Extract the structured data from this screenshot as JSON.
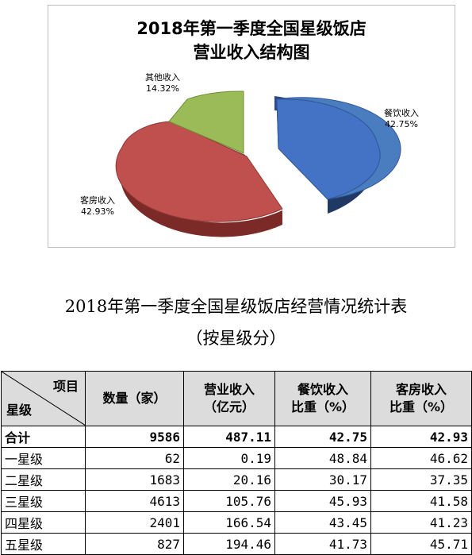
{
  "chart_data": {
    "type": "pie",
    "title_line1": "2018年第一季度全国星级饭店",
    "title_line2": "营业收入结构图",
    "slices": [
      {
        "name": "餐饮收入",
        "label": "42.75%",
        "value": 42.75,
        "color": "#4472c4"
      },
      {
        "name": "客房收入",
        "label": "42.93%",
        "value": 42.93,
        "color": "#c0504d"
      },
      {
        "name": "其他收入",
        "label": "14.32%",
        "value": 14.32,
        "color": "#9bbb59"
      }
    ]
  },
  "table": {
    "title_line1": "2018年第一季度全国星级饭店经营情况统计表",
    "title_line2": "（按星级分）",
    "corner_top": "项目",
    "corner_bottom": "星级",
    "headers": [
      "数量（家）",
      "营业收入\n（亿元）",
      "餐饮收入\n比重（%）",
      "客房收入\n比重（%）"
    ],
    "rows": [
      {
        "label": "合计",
        "cells": [
          "9586",
          "487.11",
          "42.75",
          "42.93"
        ]
      },
      {
        "label": "一星级",
        "cells": [
          "62",
          "0.19",
          "48.84",
          "46.62"
        ]
      },
      {
        "label": "二星级",
        "cells": [
          "1683",
          "20.16",
          "30.17",
          "37.35"
        ]
      },
      {
        "label": "三星级",
        "cells": [
          "4613",
          "105.76",
          "45.93",
          "41.58"
        ]
      },
      {
        "label": "四星级",
        "cells": [
          "2401",
          "166.54",
          "43.45",
          "41.23"
        ]
      },
      {
        "label": "五星级",
        "cells": [
          "827",
          "194.46",
          "41.73",
          "45.71"
        ]
      }
    ]
  }
}
